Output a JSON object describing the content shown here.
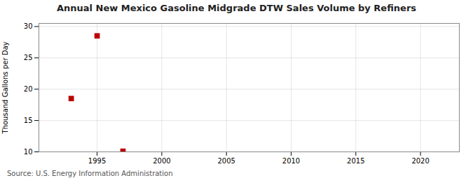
{
  "chart_data": {
    "type": "scatter",
    "title": "Annual New Mexico Gasoline Midgrade DTW Sales Volume by Refiners",
    "ylabel": "Thousand Gallons per Day",
    "source": "Source: U.S. Energy Information Administration",
    "x": [
      1993,
      1995,
      1997
    ],
    "values": [
      18.5,
      28.5,
      10.1
    ],
    "color": "#bb0000",
    "marker": "square",
    "xlim": [
      1990.5,
      2023
    ],
    "ylim": [
      10,
      30.5
    ],
    "xticks": [
      1995,
      2000,
      2005,
      2010,
      2015,
      2020
    ],
    "yticks": [
      10,
      15,
      20,
      25,
      30
    ],
    "grid": true
  }
}
